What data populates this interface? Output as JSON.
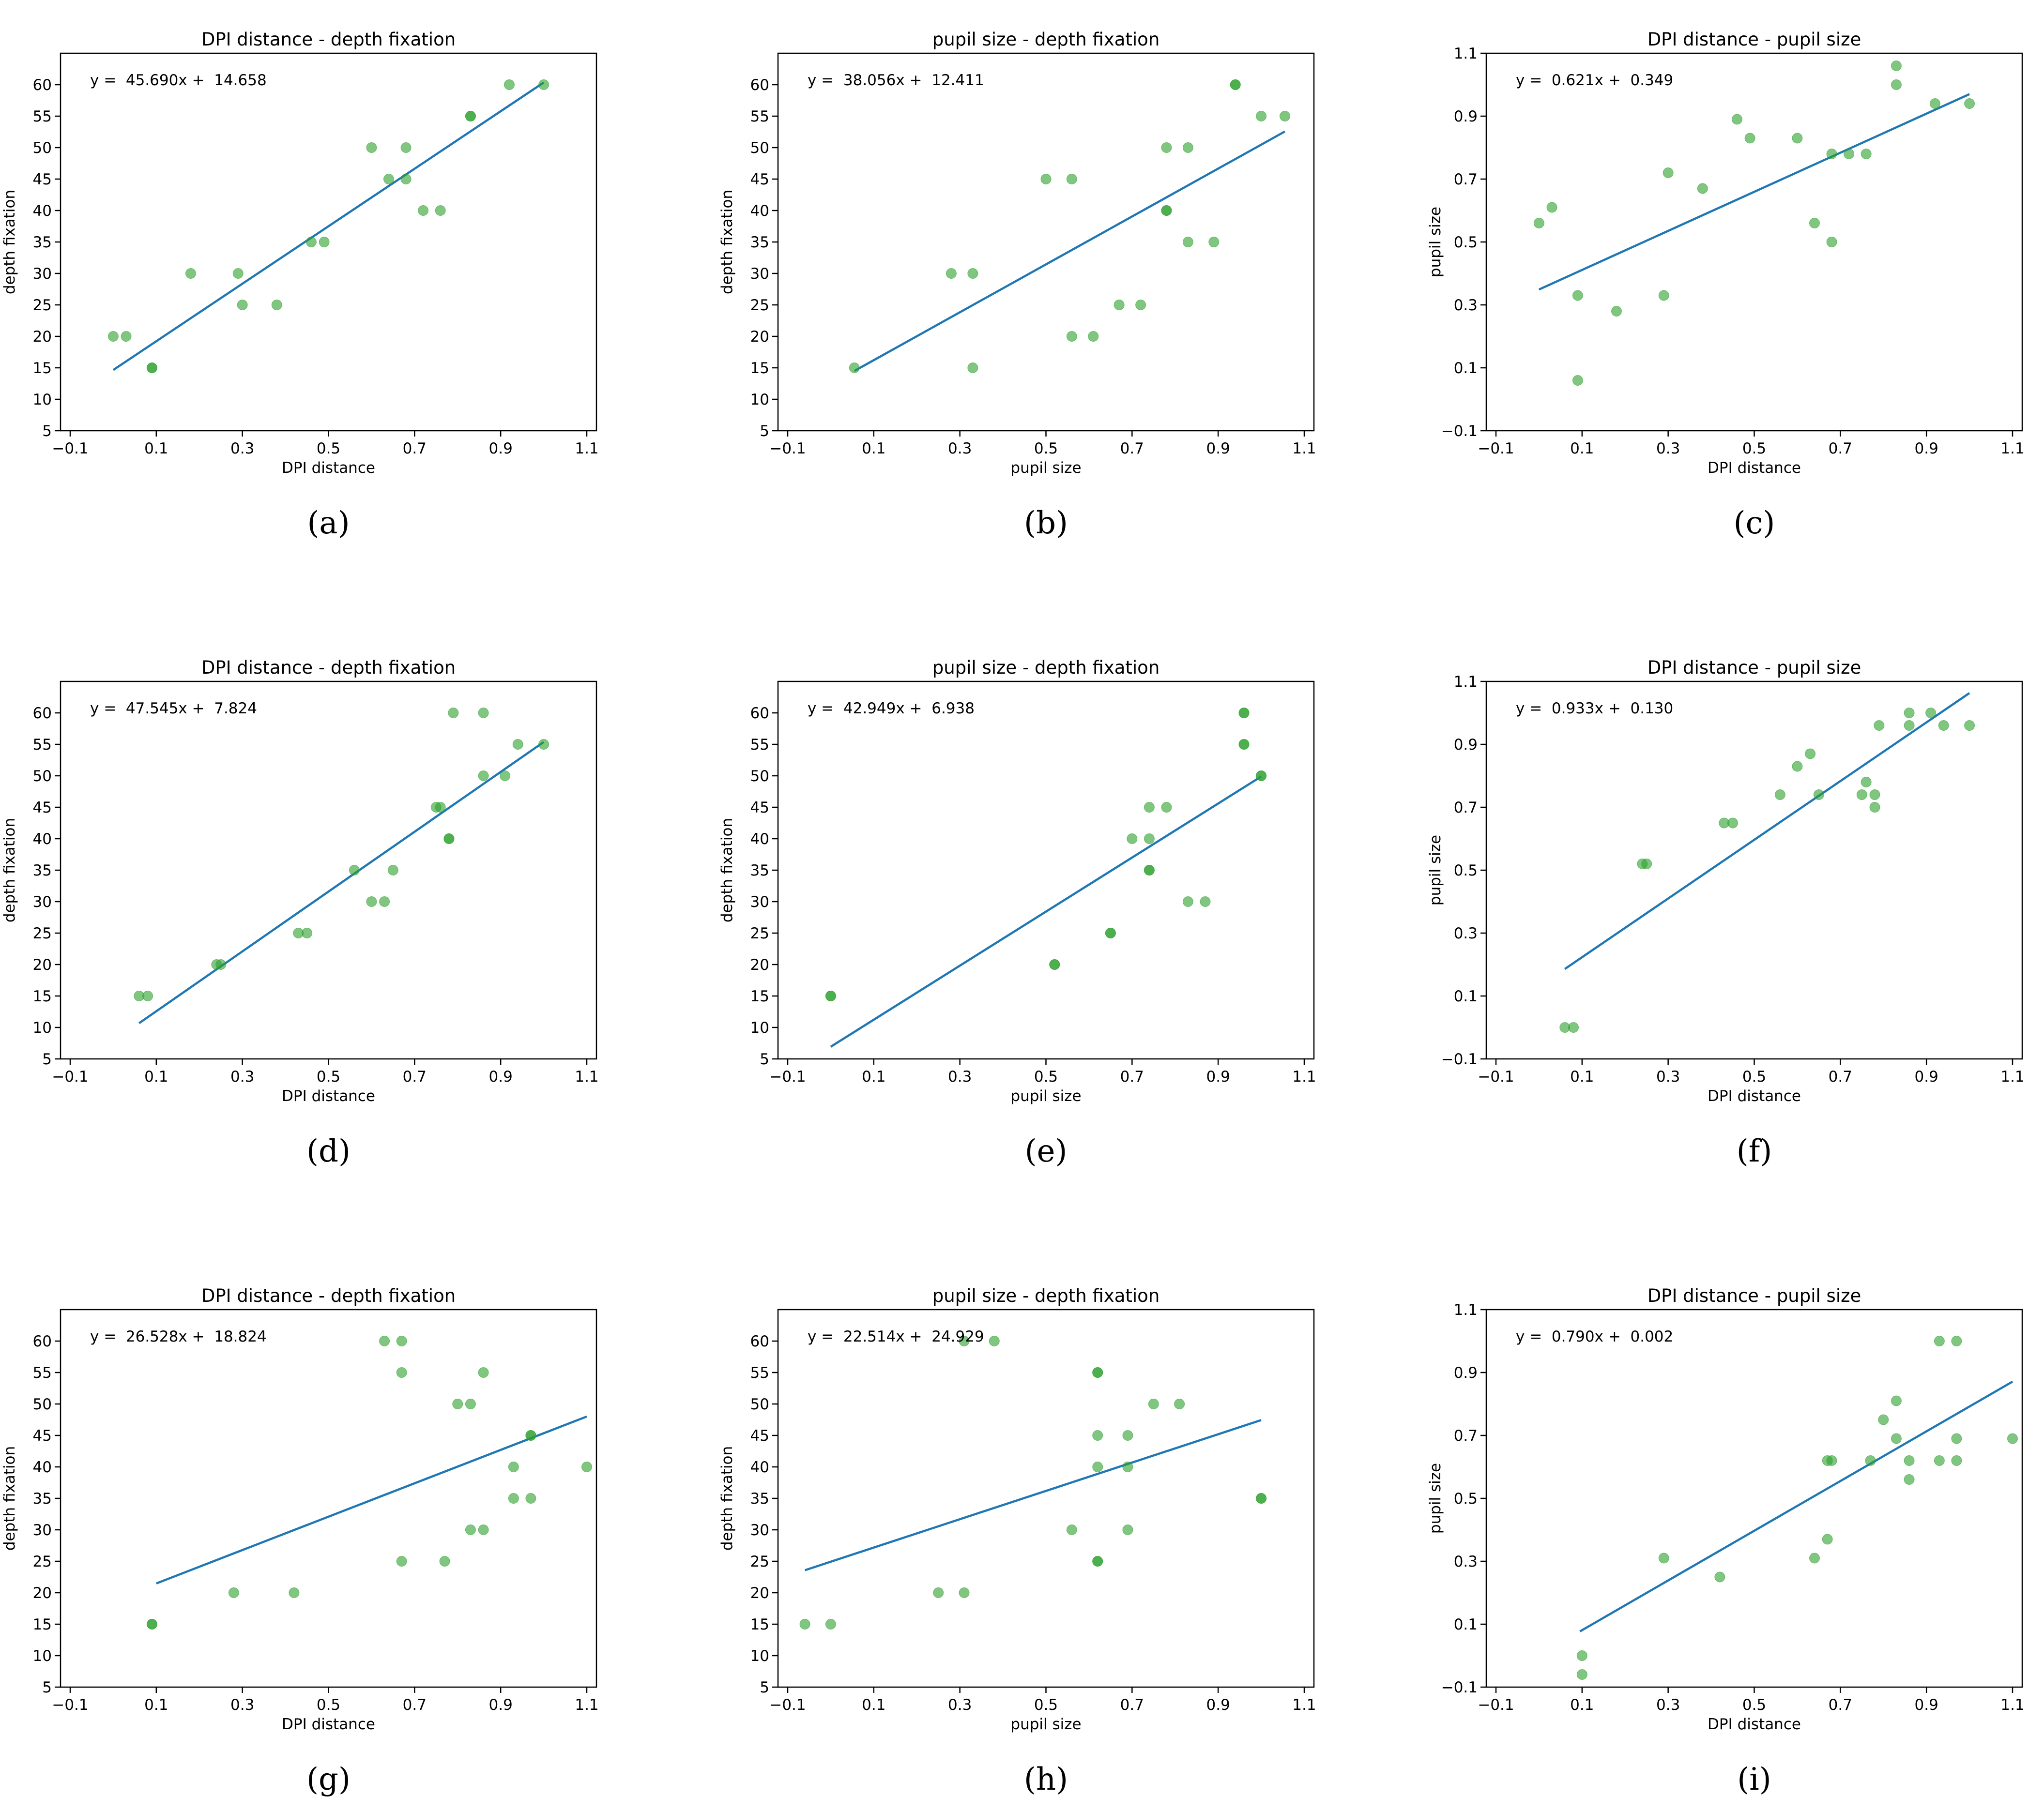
{
  "style": {
    "point_color": "#2ca02c",
    "line_color": "#1f77b4",
    "axis_color": "#000000"
  },
  "chart_data": [
    {
      "type": "scatter",
      "caption": "(a)",
      "title": "DPI distance - depth fixation",
      "xlabel": "DPI distance",
      "ylabel": "depth fixation",
      "xlim": [
        -0.1,
        1.1
      ],
      "ylim": [
        5,
        65
      ],
      "xticks": [
        -0.1,
        0.1,
        0.3,
        0.5,
        0.7,
        0.9,
        1.1
      ],
      "xtick_labels": [
        "−0.1",
        "0.1",
        "0.3",
        "0.5",
        "0.7",
        "0.9",
        "1.1"
      ],
      "yticks": [
        5,
        10,
        15,
        20,
        25,
        30,
        35,
        40,
        45,
        50,
        55,
        60
      ],
      "ytick_labels": [
        "5",
        "10",
        "15",
        "20",
        "25",
        "30",
        "35",
        "40",
        "45",
        "50",
        "55",
        "60"
      ],
      "equation": "y =  45.690x +  14.658",
      "fit": {
        "slope": 45.69,
        "intercept": 14.658,
        "x_start": 0.0,
        "x_end": 1.0
      },
      "points": [
        [
          0.0,
          20
        ],
        [
          0.03,
          20
        ],
        [
          0.09,
          15
        ],
        [
          0.09,
          15
        ],
        [
          0.18,
          30
        ],
        [
          0.29,
          30
        ],
        [
          0.3,
          25
        ],
        [
          0.38,
          25
        ],
        [
          0.46,
          35
        ],
        [
          0.49,
          35
        ],
        [
          0.6,
          50
        ],
        [
          0.64,
          45
        ],
        [
          0.68,
          45
        ],
        [
          0.68,
          50
        ],
        [
          0.72,
          40
        ],
        [
          0.76,
          40
        ],
        [
          0.83,
          55
        ],
        [
          0.83,
          55
        ],
        [
          0.92,
          60
        ],
        [
          1.0,
          60
        ]
      ]
    },
    {
      "type": "scatter",
      "caption": "(b)",
      "title": "pupil size - depth fixation",
      "xlabel": "pupil size",
      "ylabel": "depth fixation",
      "xlim": [
        -0.1,
        1.1
      ],
      "ylim": [
        5,
        65
      ],
      "xticks": [
        -0.1,
        0.1,
        0.3,
        0.5,
        0.7,
        0.9,
        1.1
      ],
      "xtick_labels": [
        "−0.1",
        "0.1",
        "0.3",
        "0.5",
        "0.7",
        "0.9",
        "1.1"
      ],
      "yticks": [
        5,
        10,
        15,
        20,
        25,
        30,
        35,
        40,
        45,
        50,
        55,
        60
      ],
      "ytick_labels": [
        "5",
        "10",
        "15",
        "20",
        "25",
        "30",
        "35",
        "40",
        "45",
        "50",
        "55",
        "60"
      ],
      "equation": "y =  38.056x +  12.411",
      "fit": {
        "slope": 38.056,
        "intercept": 12.411,
        "x_start": 0.055,
        "x_end": 1.055
      },
      "points": [
        [
          0.055,
          15
        ],
        [
          0.28,
          30
        ],
        [
          0.33,
          30
        ],
        [
          0.33,
          15
        ],
        [
          0.5,
          45
        ],
        [
          0.56,
          45
        ],
        [
          0.56,
          20
        ],
        [
          0.61,
          20
        ],
        [
          0.67,
          25
        ],
        [
          0.72,
          25
        ],
        [
          0.78,
          40
        ],
        [
          0.78,
          40
        ],
        [
          0.78,
          50
        ],
        [
          0.83,
          50
        ],
        [
          0.83,
          35
        ],
        [
          0.89,
          35
        ],
        [
          0.94,
          60
        ],
        [
          0.94,
          60
        ],
        [
          1.0,
          55
        ],
        [
          1.055,
          55
        ]
      ]
    },
    {
      "type": "scatter",
      "caption": "(c)",
      "title": "DPI distance - pupil size",
      "xlabel": "DPI distance",
      "ylabel": "pupil size",
      "xlim": [
        -0.1,
        1.1
      ],
      "ylim": [
        -0.1,
        1.1
      ],
      "xticks": [
        -0.1,
        0.1,
        0.3,
        0.5,
        0.7,
        0.9,
        1.1
      ],
      "xtick_labels": [
        "−0.1",
        "0.1",
        "0.3",
        "0.5",
        "0.7",
        "0.9",
        "1.1"
      ],
      "yticks": [
        -0.1,
        0.1,
        0.3,
        0.5,
        0.7,
        0.9,
        1.1
      ],
      "ytick_labels": [
        "−0.1",
        "0.1",
        "0.3",
        "0.5",
        "0.7",
        "0.9",
        "1.1"
      ],
      "equation": "y =  0.621x +  0.349",
      "fit": {
        "slope": 0.621,
        "intercept": 0.349,
        "x_start": 0.0,
        "x_end": 1.0
      },
      "points": [
        [
          0.0,
          0.56
        ],
        [
          0.03,
          0.61
        ],
        [
          0.09,
          0.33
        ],
        [
          0.09,
          0.06
        ],
        [
          0.18,
          0.28
        ],
        [
          0.29,
          0.33
        ],
        [
          0.3,
          0.72
        ],
        [
          0.38,
          0.67
        ],
        [
          0.46,
          0.89
        ],
        [
          0.49,
          0.83
        ],
        [
          0.6,
          0.83
        ],
        [
          0.64,
          0.56
        ],
        [
          0.68,
          0.5
        ],
        [
          0.68,
          0.78
        ],
        [
          0.72,
          0.78
        ],
        [
          0.76,
          0.78
        ],
        [
          0.83,
          1.06
        ],
        [
          0.83,
          1.0
        ],
        [
          0.92,
          0.94
        ],
        [
          1.0,
          0.94
        ]
      ]
    },
    {
      "type": "scatter",
      "caption": "(d)",
      "title": "DPI distance - depth fixation",
      "xlabel": "DPI distance",
      "ylabel": "depth fixation",
      "xlim": [
        -0.1,
        1.1
      ],
      "ylim": [
        5,
        65
      ],
      "xticks": [
        -0.1,
        0.1,
        0.3,
        0.5,
        0.7,
        0.9,
        1.1
      ],
      "xtick_labels": [
        "−0.1",
        "0.1",
        "0.3",
        "0.5",
        "0.7",
        "0.9",
        "1.1"
      ],
      "yticks": [
        5,
        10,
        15,
        20,
        25,
        30,
        35,
        40,
        45,
        50,
        55,
        60
      ],
      "ytick_labels": [
        "5",
        "10",
        "15",
        "20",
        "25",
        "30",
        "35",
        "40",
        "45",
        "50",
        "55",
        "60"
      ],
      "equation": "y =  47.545x +  7.824",
      "fit": {
        "slope": 47.545,
        "intercept": 7.824,
        "x_start": 0.06,
        "x_end": 1.0
      },
      "points": [
        [
          0.06,
          15
        ],
        [
          0.08,
          15
        ],
        [
          0.24,
          20
        ],
        [
          0.25,
          20
        ],
        [
          0.43,
          25
        ],
        [
          0.45,
          25
        ],
        [
          0.56,
          35
        ],
        [
          0.6,
          30
        ],
        [
          0.63,
          30
        ],
        [
          0.65,
          35
        ],
        [
          0.75,
          45
        ],
        [
          0.76,
          45
        ],
        [
          0.78,
          40
        ],
        [
          0.78,
          40
        ],
        [
          0.79,
          60
        ],
        [
          0.86,
          60
        ],
        [
          0.86,
          50
        ],
        [
          0.91,
          50
        ],
        [
          0.94,
          55
        ],
        [
          1.0,
          55
        ]
      ]
    },
    {
      "type": "scatter",
      "caption": "(e)",
      "title": "pupil size - depth fixation",
      "xlabel": "pupil size",
      "ylabel": "depth fixation",
      "xlim": [
        -0.1,
        1.1
      ],
      "ylim": [
        5,
        65
      ],
      "xticks": [
        -0.1,
        0.1,
        0.3,
        0.5,
        0.7,
        0.9,
        1.1
      ],
      "xtick_labels": [
        "−0.1",
        "0.1",
        "0.3",
        "0.5",
        "0.7",
        "0.9",
        "1.1"
      ],
      "yticks": [
        5,
        10,
        15,
        20,
        25,
        30,
        35,
        40,
        45,
        50,
        55,
        60
      ],
      "ytick_labels": [
        "5",
        "10",
        "15",
        "20",
        "25",
        "30",
        "35",
        "40",
        "45",
        "50",
        "55",
        "60"
      ],
      "equation": "y =  42.949x +  6.938",
      "fit": {
        "slope": 42.949,
        "intercept": 6.938,
        "x_start": 0.0,
        "x_end": 1.0
      },
      "points": [
        [
          0.0,
          15
        ],
        [
          0.0,
          15
        ],
        [
          0.52,
          20
        ],
        [
          0.52,
          20
        ],
        [
          0.65,
          25
        ],
        [
          0.65,
          25
        ],
        [
          0.7,
          40
        ],
        [
          0.74,
          45
        ],
        [
          0.74,
          40
        ],
        [
          0.74,
          35
        ],
        [
          0.74,
          35
        ],
        [
          0.78,
          45
        ],
        [
          0.83,
          30
        ],
        [
          0.87,
          30
        ],
        [
          0.96,
          60
        ],
        [
          0.96,
          60
        ],
        [
          0.96,
          55
        ],
        [
          0.96,
          55
        ],
        [
          1.0,
          50
        ],
        [
          1.0,
          50
        ]
      ]
    },
    {
      "type": "scatter",
      "caption": "(f)",
      "title": "DPI distance - pupil size",
      "xlabel": "DPI distance",
      "ylabel": "pupil size",
      "xlim": [
        -0.1,
        1.1
      ],
      "ylim": [
        -0.1,
        1.1
      ],
      "xticks": [
        -0.1,
        0.1,
        0.3,
        0.5,
        0.7,
        0.9,
        1.1
      ],
      "xtick_labels": [
        "−0.1",
        "0.1",
        "0.3",
        "0.5",
        "0.7",
        "0.9",
        "1.1"
      ],
      "yticks": [
        -0.1,
        0.1,
        0.3,
        0.5,
        0.7,
        0.9,
        1.1
      ],
      "ytick_labels": [
        "−0.1",
        "0.1",
        "0.3",
        "0.5",
        "0.7",
        "0.9",
        "1.1"
      ],
      "equation": "y =  0.933x +  0.130",
      "fit": {
        "slope": 0.933,
        "intercept": 0.13,
        "x_start": 0.06,
        "x_end": 1.0
      },
      "points": [
        [
          0.06,
          0.0
        ],
        [
          0.08,
          0.0
        ],
        [
          0.24,
          0.52
        ],
        [
          0.25,
          0.52
        ],
        [
          0.43,
          0.65
        ],
        [
          0.45,
          0.65
        ],
        [
          0.56,
          0.74
        ],
        [
          0.6,
          0.83
        ],
        [
          0.63,
          0.87
        ],
        [
          0.65,
          0.74
        ],
        [
          0.75,
          0.74
        ],
        [
          0.76,
          0.78
        ],
        [
          0.78,
          0.74
        ],
        [
          0.78,
          0.7
        ],
        [
          0.79,
          0.96
        ],
        [
          0.86,
          1.0
        ],
        [
          0.86,
          0.96
        ],
        [
          0.91,
          1.0
        ],
        [
          0.94,
          0.96
        ],
        [
          1.0,
          0.96
        ]
      ]
    },
    {
      "type": "scatter",
      "caption": "(g)",
      "title": "DPI distance - depth fixation",
      "xlabel": "DPI distance",
      "ylabel": "depth fixation",
      "xlim": [
        -0.1,
        1.1
      ],
      "ylim": [
        5,
        65
      ],
      "xticks": [
        -0.1,
        0.1,
        0.3,
        0.5,
        0.7,
        0.9,
        1.1
      ],
      "xtick_labels": [
        "−0.1",
        "0.1",
        "0.3",
        "0.5",
        "0.7",
        "0.9",
        "1.1"
      ],
      "yticks": [
        5,
        10,
        15,
        20,
        25,
        30,
        35,
        40,
        45,
        50,
        55,
        60
      ],
      "ytick_labels": [
        "5",
        "10",
        "15",
        "20",
        "25",
        "30",
        "35",
        "40",
        "45",
        "50",
        "55",
        "60"
      ],
      "equation": "y =  26.528x +  18.824",
      "fit": {
        "slope": 26.528,
        "intercept": 18.824,
        "x_start": 0.1,
        "x_end": 1.1
      },
      "points": [
        [
          0.09,
          15
        ],
        [
          0.09,
          15
        ],
        [
          0.28,
          20
        ],
        [
          0.42,
          20
        ],
        [
          0.63,
          60
        ],
        [
          0.67,
          60
        ],
        [
          0.67,
          55
        ],
        [
          0.67,
          25
        ],
        [
          0.77,
          25
        ],
        [
          0.8,
          50
        ],
        [
          0.83,
          50
        ],
        [
          0.83,
          30
        ],
        [
          0.86,
          55
        ],
        [
          0.86,
          30
        ],
        [
          0.93,
          40
        ],
        [
          0.93,
          35
        ],
        [
          0.97,
          45
        ],
        [
          0.97,
          45
        ],
        [
          0.97,
          35
        ],
        [
          1.1,
          40
        ]
      ]
    },
    {
      "type": "scatter",
      "caption": "(h)",
      "title": "pupil size - depth fixation",
      "xlabel": "pupil size",
      "ylabel": "depth fixation",
      "xlim": [
        -0.1,
        1.1
      ],
      "ylim": [
        5,
        65
      ],
      "xticks": [
        -0.1,
        0.1,
        0.3,
        0.5,
        0.7,
        0.9,
        1.1
      ],
      "xtick_labels": [
        "−0.1",
        "0.1",
        "0.3",
        "0.5",
        "0.7",
        "0.9",
        "1.1"
      ],
      "yticks": [
        5,
        10,
        15,
        20,
        25,
        30,
        35,
        40,
        45,
        50,
        55,
        60
      ],
      "ytick_labels": [
        "5",
        "10",
        "15",
        "20",
        "25",
        "30",
        "35",
        "40",
        "45",
        "50",
        "55",
        "60"
      ],
      "equation": "y =  22.514x +  24.929",
      "fit": {
        "slope": 22.514,
        "intercept": 24.929,
        "x_start": -0.06,
        "x_end": 1.0
      },
      "points": [
        [
          -0.06,
          15
        ],
        [
          0.0,
          15
        ],
        [
          0.25,
          20
        ],
        [
          0.31,
          20
        ],
        [
          0.31,
          60
        ],
        [
          0.38,
          60
        ],
        [
          0.56,
          30
        ],
        [
          0.62,
          55
        ],
        [
          0.62,
          55
        ],
        [
          0.62,
          45
        ],
        [
          0.62,
          40
        ],
        [
          0.62,
          25
        ],
        [
          0.62,
          25
        ],
        [
          0.69,
          45
        ],
        [
          0.69,
          40
        ],
        [
          0.69,
          30
        ],
        [
          0.75,
          50
        ],
        [
          0.81,
          50
        ],
        [
          1.0,
          35
        ],
        [
          1.0,
          35
        ]
      ]
    },
    {
      "type": "scatter",
      "caption": "(i)",
      "title": "DPI distance - pupil size",
      "xlabel": "DPI distance",
      "ylabel": "pupil size",
      "xlim": [
        -0.1,
        1.1
      ],
      "ylim": [
        -0.1,
        1.1
      ],
      "xticks": [
        -0.1,
        0.1,
        0.3,
        0.5,
        0.7,
        0.9,
        1.1
      ],
      "xtick_labels": [
        "−0.1",
        "0.1",
        "0.3",
        "0.5",
        "0.7",
        "0.9",
        "1.1"
      ],
      "yticks": [
        -0.1,
        0.1,
        0.3,
        0.5,
        0.7,
        0.9,
        1.1
      ],
      "ytick_labels": [
        "−0.1",
        "0.1",
        "0.3",
        "0.5",
        "0.7",
        "0.9",
        "1.1"
      ],
      "equation": "y =  0.790x +  0.002",
      "fit": {
        "slope": 0.79,
        "intercept": 0.002,
        "x_start": 0.095,
        "x_end": 1.1
      },
      "points": [
        [
          0.1,
          0.0
        ],
        [
          0.1,
          -0.06
        ],
        [
          0.29,
          0.31
        ],
        [
          0.42,
          0.25
        ],
        [
          0.64,
          0.31
        ],
        [
          0.67,
          0.37
        ],
        [
          0.67,
          0.62
        ],
        [
          0.68,
          0.62
        ],
        [
          0.77,
          0.62
        ],
        [
          0.8,
          0.75
        ],
        [
          0.83,
          0.81
        ],
        [
          0.83,
          0.69
        ],
        [
          0.86,
          0.62
        ],
        [
          0.86,
          0.56
        ],
        [
          0.93,
          1.0
        ],
        [
          0.93,
          0.62
        ],
        [
          0.97,
          1.0
        ],
        [
          0.97,
          0.69
        ],
        [
          0.97,
          0.62
        ],
        [
          1.1,
          0.69
        ]
      ]
    }
  ]
}
